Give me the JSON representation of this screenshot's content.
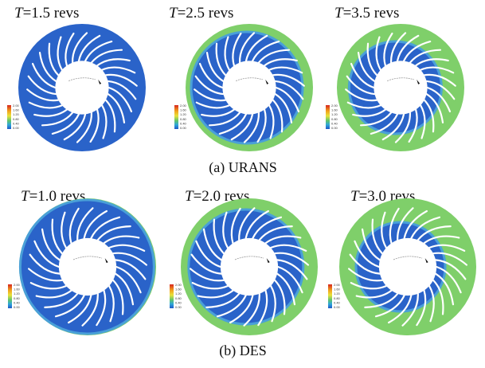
{
  "panels": [
    {
      "symbol": "T",
      "text": "=1.5 revs"
    },
    {
      "symbol": "T",
      "text": "=2.5 revs"
    },
    {
      "symbol": "T",
      "text": "=3.5 revs"
    },
    {
      "symbol": "T",
      "text": "=1.0 revs"
    },
    {
      "symbol": "T",
      "text": "=2.0 revs"
    },
    {
      "symbol": "T",
      "text": "=3.0 revs"
    }
  ],
  "captions": [
    "(a) URANS",
    "(b) DES"
  ],
  "colorbar_labels": [
    "2.00",
    "1.60",
    "1.20",
    "0.80",
    "0.40",
    "0.00"
  ]
}
